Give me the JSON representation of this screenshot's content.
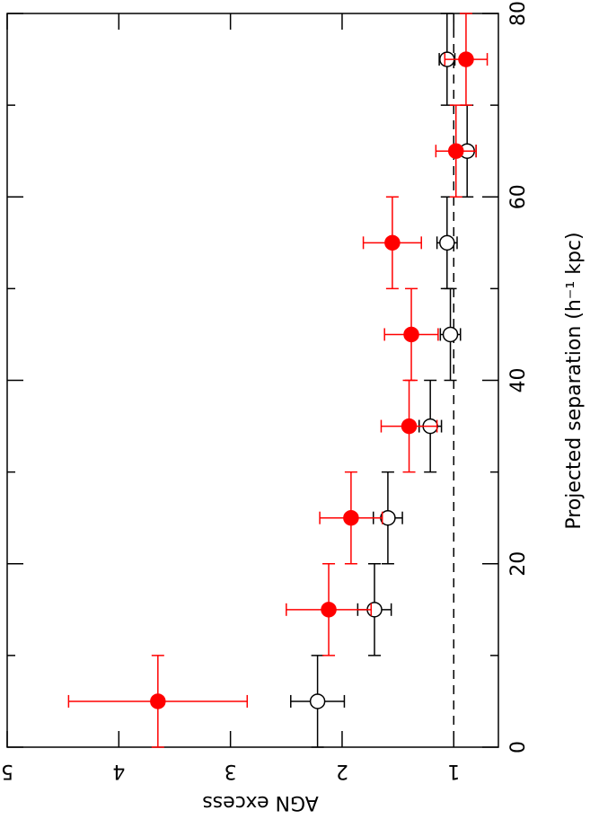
{
  "chart_data": {
    "type": "scatter",
    "xlabel": "Projected separation (h⁻¹ kpc)",
    "ylabel": "AGN excess",
    "xlim": [
      0,
      80
    ],
    "xticks": [
      0,
      20,
      40,
      60,
      80
    ],
    "xminor": [
      10,
      30,
      50,
      70
    ],
    "ylim": [
      0.6,
      5
    ],
    "yticks": [
      1,
      2,
      3,
      4,
      5
    ],
    "hline": 1,
    "series": [
      {
        "color": "#000000",
        "marker": "open",
        "x": [
          5,
          15,
          25,
          35,
          45,
          55,
          65,
          75
        ],
        "xerr": [
          5,
          5,
          5,
          5,
          5,
          5,
          5,
          5
        ],
        "values": [
          2.22,
          1.71,
          1.59,
          1.21,
          1.03,
          1.06,
          0.88,
          1.06
        ],
        "yerr": [
          0.24,
          0.15,
          0.13,
          0.1,
          0.09,
          0.09,
          0.08,
          0.07
        ]
      },
      {
        "color": "#ff0000",
        "marker": "filled",
        "x": [
          5,
          15,
          25,
          35,
          45,
          55,
          65,
          75
        ],
        "xerr": [
          5,
          5,
          5,
          5,
          5,
          5,
          5,
          5
        ],
        "values": [
          3.65,
          2.12,
          1.92,
          1.4,
          1.38,
          1.55,
          0.98,
          0.89
        ],
        "yerr": [
          0.8,
          0.38,
          0.28,
          0.25,
          0.24,
          0.26,
          0.18,
          0.19
        ]
      }
    ]
  }
}
